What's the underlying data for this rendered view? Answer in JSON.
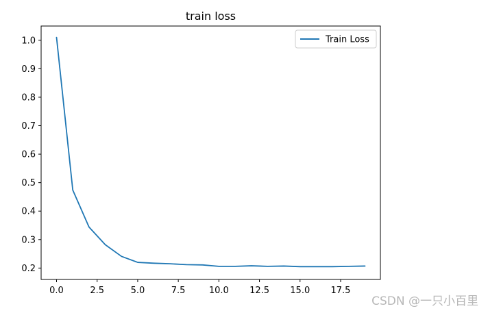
{
  "chart_data": {
    "type": "line",
    "title": "train loss",
    "xlabel": "",
    "ylabel": "",
    "xlim": [
      -0.95,
      19.95
    ],
    "ylim": [
      0.16,
      1.05
    ],
    "x_ticks": [
      0.0,
      2.5,
      5.0,
      7.5,
      10.0,
      12.5,
      15.0,
      17.5
    ],
    "x_tick_labels": [
      "0.0",
      "2.5",
      "5.0",
      "7.5",
      "10.0",
      "12.5",
      "15.0",
      "17.5"
    ],
    "y_ticks": [
      0.2,
      0.3,
      0.4,
      0.5,
      0.6,
      0.7,
      0.8,
      0.9,
      1.0
    ],
    "y_tick_labels": [
      "0.2",
      "0.3",
      "0.4",
      "0.5",
      "0.6",
      "0.7",
      "0.8",
      "0.9",
      "1.0"
    ],
    "grid": false,
    "legend_position": "top-right",
    "series": [
      {
        "name": "Train Loss",
        "color": "#1f77b4",
        "x": [
          0,
          1,
          2,
          3,
          4,
          5,
          6,
          7,
          8,
          9,
          10,
          11,
          12,
          13,
          14,
          15,
          16,
          17,
          18,
          19
        ],
        "values": [
          1.01,
          0.474,
          0.344,
          0.282,
          0.241,
          0.22,
          0.217,
          0.215,
          0.212,
          0.211,
          0.206,
          0.206,
          0.208,
          0.206,
          0.207,
          0.205,
          0.205,
          0.205,
          0.206,
          0.207
        ]
      }
    ]
  },
  "watermark": "CSDN @一只小百里"
}
